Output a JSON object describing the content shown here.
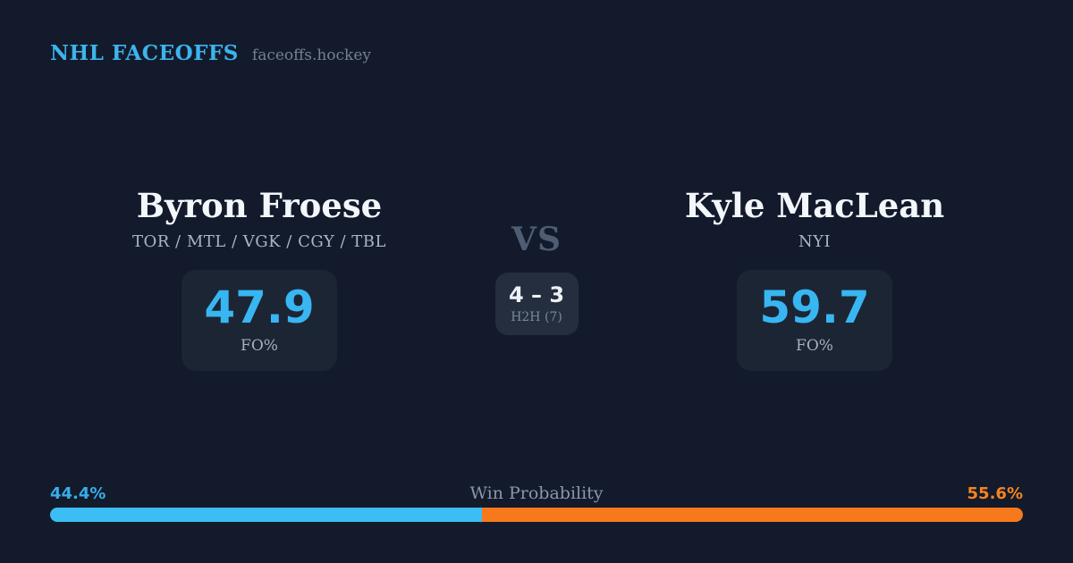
{
  "header": {
    "brand": "NHL FACEOFFS",
    "site": "faceoffs.hockey"
  },
  "matchup": {
    "vs_label": "VS",
    "h2h": {
      "score": "4 – 3",
      "label": "H2H (7)"
    },
    "players": [
      {
        "name": "Byron Froese",
        "teams": "TOR / MTL / VGK / CGY / TBL",
        "fo_pct": "47.9",
        "stat_label": "FO%"
      },
      {
        "name": "Kyle MacLean",
        "teams": "NYI",
        "fo_pct": "59.7",
        "stat_label": "FO%"
      }
    ]
  },
  "win_probability": {
    "title": "Win Probability",
    "left_pct": "44.4%",
    "right_pct": "55.6%",
    "left_value": 44.4,
    "right_value": 55.6
  },
  "colors": {
    "background": "#121a2b",
    "card": "#1c2534",
    "h2h_card": "#242e3f",
    "accent_blue": "#38b6f2",
    "accent_orange": "#f8791b",
    "name_text": "#f3f6fa",
    "muted_text": "#a9b5c7",
    "vs_text": "#4e5c74"
  },
  "chart_data": {
    "type": "bar",
    "title": "Win Probability",
    "categories": [
      "Byron Froese",
      "Kyle MacLean"
    ],
    "series": [
      {
        "name": "Win Probability %",
        "values": [
          44.4,
          55.6
        ]
      },
      {
        "name": "FO%",
        "values": [
          47.9,
          59.7
        ]
      },
      {
        "name": "H2H wins (of 7 meetings)",
        "values": [
          4,
          3
        ]
      }
    ],
    "xlabel": "",
    "ylabel": "",
    "ylim": [
      0,
      100
    ],
    "legend_position": "none",
    "grid": false,
    "colors": {
      "Byron Froese": "#3cbdf4",
      "Kyle MacLean": "#f8791b"
    }
  }
}
